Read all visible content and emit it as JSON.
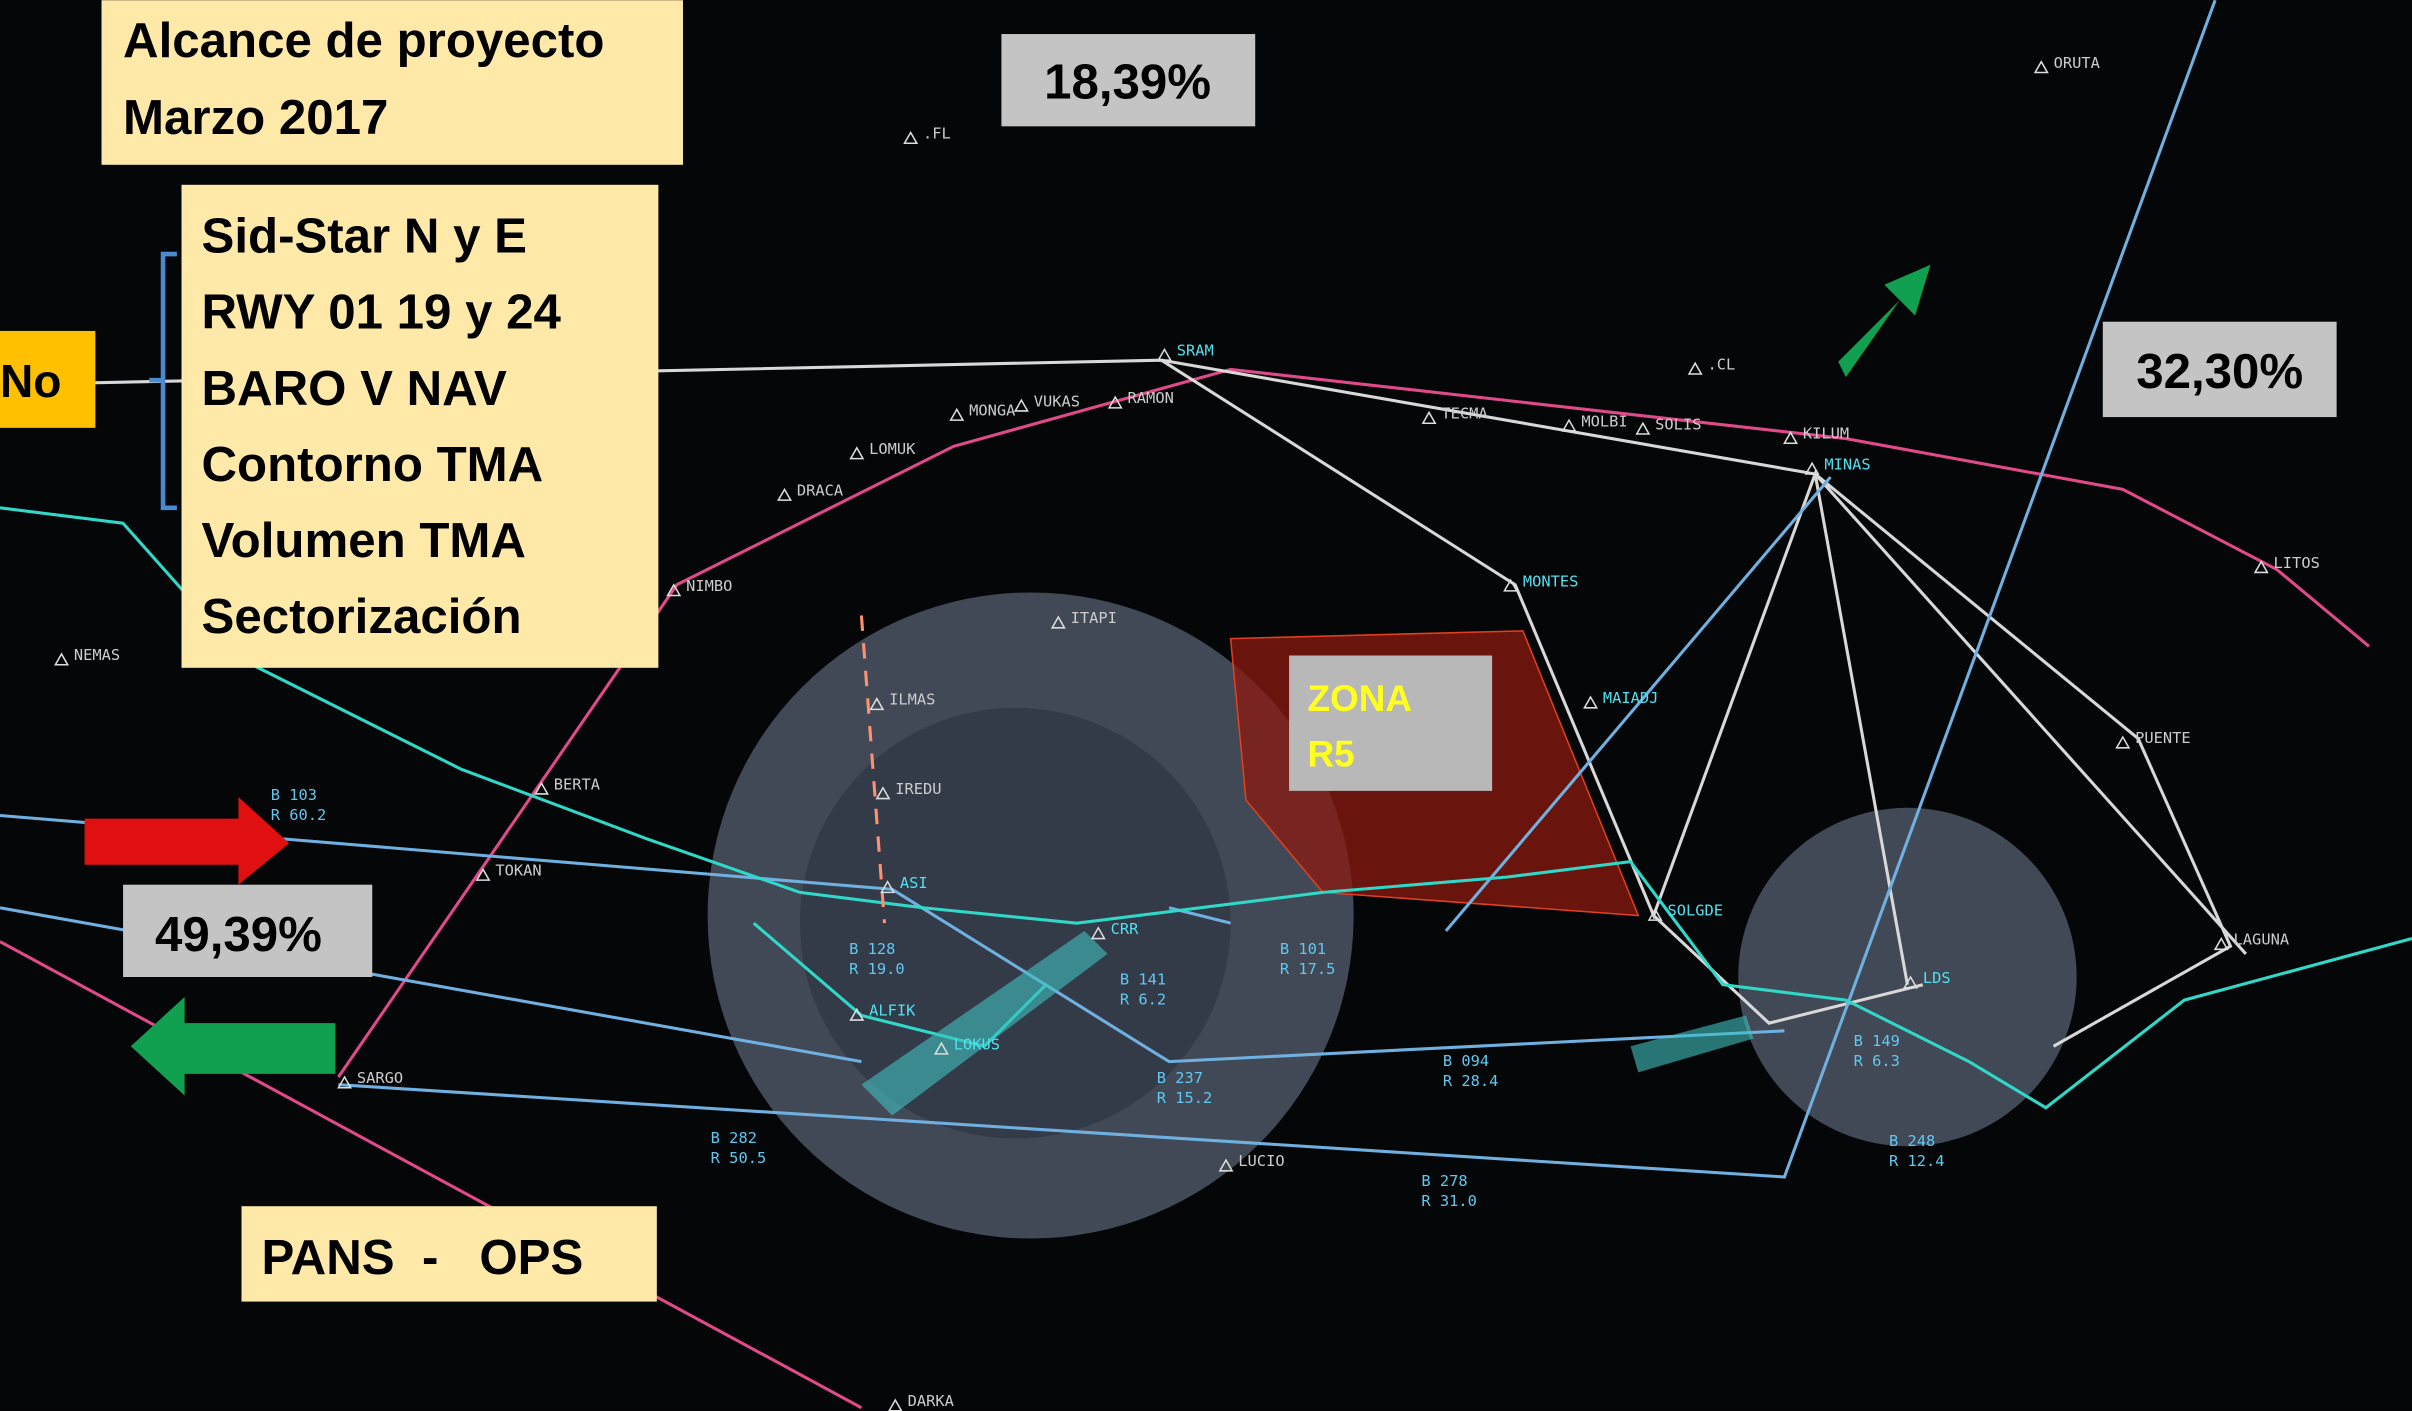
{
  "title_box": [
    "Alcance de proyecto",
    "Marzo 2017"
  ],
  "scope_list": [
    "Sid-Star N y E",
    "RWY 01 19 y 24",
    "BARO V NAV",
    "Contorno TMA",
    "Volumen TMA",
    "Sectorización"
  ],
  "side_label": "No",
  "percentages": [
    "18,39%",
    "32,30%",
    "49,39%"
  ],
  "zone_label": [
    "ZONA",
    "R5"
  ],
  "footer_box": "PANS  -   OPS",
  "waypoints": [
    "ORUTA",
    ".FL",
    ".CL",
    "SRAM",
    "MONGA",
    "VUKAS",
    "RAMON",
    "TECMA",
    "MOLBI",
    "SOLIS",
    "KILUM",
    "MINAS",
    "LOMUK",
    "DRACA",
    "MONTES",
    "NIMBO",
    "ITAPI",
    "LITOS",
    "NEMAS",
    "ILMAS",
    "MAIADJ",
    "PUENTE",
    "IREDU",
    "BERTA",
    "TOKAN",
    "ASI",
    "CRR",
    "SOLGDE",
    "LAGUNA",
    "LDS",
    "ALFIK",
    "LOKUS",
    "SARGO",
    "LUCIO",
    "DARKA"
  ],
  "bearings": [
    [
      "B 103",
      "R 60.2"
    ],
    [
      "B 128",
      "R 19.0"
    ],
    [
      "B 141",
      "R 6.2"
    ],
    [
      "B 101",
      "R 17.5"
    ],
    [
      "B 237",
      "R 15.2"
    ],
    [
      "B 094",
      "R 28.4"
    ],
    [
      "B 149",
      "R 6.3"
    ],
    [
      "B 282",
      "R 50.5"
    ],
    [
      "B 248",
      "R 12.4"
    ],
    [
      "B 278",
      "R 31.0"
    ]
  ]
}
